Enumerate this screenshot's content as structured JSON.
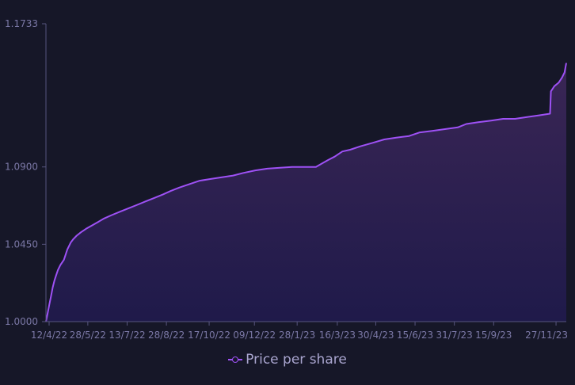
{
  "chart_data": {
    "type": "area",
    "title": "",
    "xlabel": "",
    "ylabel": "",
    "x_ticks": [
      "12/4/22",
      "28/5/22",
      "13/7/22",
      "28/8/22",
      "17/10/22",
      "09/12/22",
      "28/1/23",
      "16/3/23",
      "30/4/23",
      "15/6/23",
      "31/7/23",
      "15/9/23",
      "27/11/23"
    ],
    "y_ticks": [
      "1.0000",
      "1.0450",
      "1.0900",
      "1.1733"
    ],
    "ylim": [
      1.0,
      1.1733
    ],
    "xlim": [
      "2022-04-09",
      "2023-12-09"
    ],
    "grid": false,
    "legend_position": "bottom-center",
    "colors": {
      "line": "#9e51f5",
      "fill_top": "#3a2655",
      "fill_bottom": "#1f1a4a",
      "axis": "#57557e",
      "text": "#7b78a6",
      "background": "#161728"
    },
    "series": [
      {
        "name": "Price per share",
        "x": [
          "2022-04-09",
          "2022-04-11",
          "2022-04-13",
          "2022-04-15",
          "2022-04-17",
          "2022-04-19",
          "2022-04-21",
          "2022-04-23",
          "2022-04-26",
          "2022-04-30",
          "2022-05-04",
          "2022-05-08",
          "2022-05-11",
          "2022-05-15",
          "2022-05-20",
          "2022-05-26",
          "2022-06-02",
          "2022-06-09",
          "2022-06-16",
          "2022-06-25",
          "2022-07-05",
          "2022-07-15",
          "2022-07-25",
          "2022-08-04",
          "2022-08-14",
          "2022-08-24",
          "2022-09-02",
          "2022-09-12",
          "2022-09-24",
          "2022-10-06",
          "2022-10-19",
          "2022-11-01",
          "2022-11-14",
          "2022-11-26",
          "2022-12-10",
          "2022-12-24",
          "2023-01-08",
          "2023-01-22",
          "2023-02-05",
          "2023-02-19",
          "2023-02-26",
          "2023-03-05",
          "2023-03-13",
          "2023-03-22",
          "2023-03-31",
          "2023-04-12",
          "2023-04-26",
          "2023-05-10",
          "2023-05-24",
          "2023-06-08",
          "2023-06-20",
          "2023-07-05",
          "2023-07-20",
          "2023-08-04",
          "2023-08-14",
          "2023-08-28",
          "2023-09-12",
          "2023-09-26",
          "2023-10-10",
          "2023-10-24",
          "2023-11-07",
          "2023-11-20",
          "2023-11-21",
          "2023-11-25",
          "2023-11-30",
          "2023-12-04",
          "2023-12-07",
          "2023-12-09"
        ],
        "y": [
          1.0,
          1.005,
          1.01,
          1.015,
          1.02,
          1.024,
          1.027,
          1.03,
          1.033,
          1.036,
          1.042,
          1.046,
          1.048,
          1.05,
          1.052,
          1.054,
          1.056,
          1.058,
          1.06,
          1.062,
          1.064,
          1.066,
          1.068,
          1.07,
          1.072,
          1.074,
          1.076,
          1.078,
          1.08,
          1.082,
          1.083,
          1.084,
          1.085,
          1.0865,
          1.088,
          1.089,
          1.0895,
          1.09,
          1.09,
          1.09,
          1.092,
          1.094,
          1.096,
          1.099,
          1.1,
          1.102,
          1.104,
          1.106,
          1.107,
          1.108,
          1.11,
          1.111,
          1.112,
          1.113,
          1.115,
          1.116,
          1.117,
          1.118,
          1.118,
          1.119,
          1.12,
          1.121,
          1.134,
          1.137,
          1.139,
          1.142,
          1.145,
          1.1505
        ]
      }
    ]
  }
}
